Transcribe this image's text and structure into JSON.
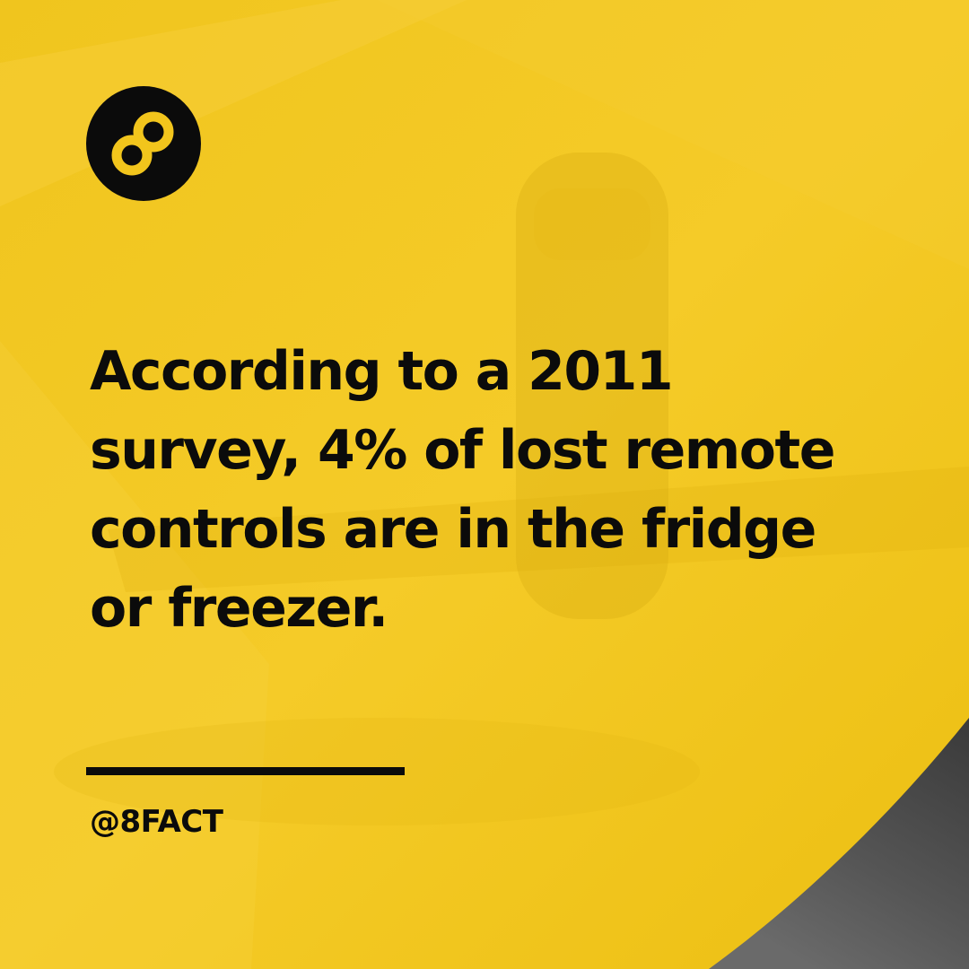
{
  "post": {
    "fact_lines": [
      "According to a 2011",
      "survey, 4% of lost remote",
      "controls are in the fridge",
      "or freezer."
    ],
    "handle": "@8FACT"
  },
  "brand": {
    "logo_icon": "infinity-eight-icon",
    "accent_color": "#f2c51c",
    "text_color": "#0b0b0b",
    "corner_color": "#4d4d4d"
  }
}
